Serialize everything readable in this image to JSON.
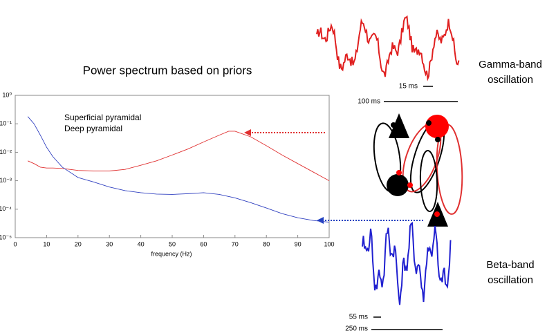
{
  "chart_data": {
    "type": "line",
    "title": "Power spectrum based on priors",
    "x_label": "frequency (Hz)",
    "x": [
      4,
      6,
      8,
      10,
      12,
      15,
      20,
      25,
      30,
      35,
      40,
      45,
      50,
      55,
      60,
      65,
      68,
      70,
      75,
      80,
      85,
      90,
      95,
      100
    ],
    "series": [
      {
        "name": "Superficial pyramidal",
        "color": "#e03030",
        "values": [
          0.005,
          0.004,
          0.003,
          0.0028,
          0.0028,
          0.0027,
          0.0023,
          0.0022,
          0.0022,
          0.0025,
          0.0035,
          0.005,
          0.008,
          0.013,
          0.023,
          0.04,
          0.055,
          0.055,
          0.035,
          0.017,
          0.008,
          0.004,
          0.002,
          0.001
        ]
      },
      {
        "name": "Deep pyramidal",
        "color": "#3040c0",
        "values": [
          0.18,
          0.1,
          0.04,
          0.015,
          0.007,
          0.003,
          0.0013,
          0.0009,
          0.0006,
          0.00045,
          0.00038,
          0.00034,
          0.00033,
          0.00035,
          0.00038,
          0.00033,
          0.00028,
          0.00025,
          0.00017,
          0.00011,
          7e-05,
          5e-05,
          4e-05,
          3.5e-05
        ]
      }
    ],
    "xlim": [
      0,
      100
    ],
    "xticks": [
      0,
      10,
      20,
      30,
      40,
      50,
      60,
      70,
      80,
      90,
      100
    ],
    "ylim": [
      1e-05,
      1
    ],
    "log_y": true,
    "yticks": [
      {
        "value": 1,
        "label": "10⁰"
      },
      {
        "value": 0.1,
        "label": "10⁻¹"
      },
      {
        "value": 0.01,
        "label": "10⁻²"
      },
      {
        "value": 0.001,
        "label": "10⁻³"
      },
      {
        "value": 0.0001,
        "label": "10⁻⁴"
      },
      {
        "value": 1e-05,
        "label": "10⁻⁵"
      }
    ],
    "grid": false
  },
  "diagram": {
    "gamma": {
      "label_lines": [
        "Gamma-band",
        "oscillation"
      ],
      "scale_bars": [
        "15 ms",
        "100 ms"
      ]
    },
    "beta": {
      "label_lines": [
        "Beta-band",
        "oscillation"
      ],
      "scale_bars": [
        "55 ms",
        "250 ms"
      ]
    }
  }
}
